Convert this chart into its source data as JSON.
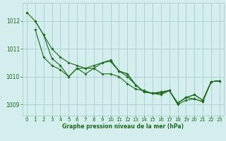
{
  "s1": [
    1012.3,
    1012.0,
    1011.5,
    1011.0,
    1010.7,
    1010.5,
    1010.4,
    1010.3,
    1010.4,
    1010.5,
    1010.6,
    1010.2,
    1010.1,
    1009.7,
    1009.45,
    1009.4,
    1009.45,
    1009.5,
    1009.05,
    1009.25,
    1009.35,
    1009.15,
    1009.82,
    1009.85
  ],
  "s2": [
    1012.3,
    null,
    null,
    null,
    null,
    null,
    null,
    null,
    null,
    null,
    1010.55,
    1010.2,
    1010.0,
    1009.7,
    1009.45,
    1009.4,
    1009.4,
    1009.5,
    1009.05,
    1009.25,
    1009.2,
    1009.1,
    1009.82,
    1009.85
  ],
  "s3": [
    null,
    1011.7,
    1010.7,
    1010.4,
    1010.25,
    1010.0,
    1010.3,
    1010.1,
    1010.3,
    1010.1,
    1010.1,
    1010.0,
    1009.75,
    1009.55,
    1009.5,
    1009.4,
    1009.35,
    1009.5,
    1009.0,
    1009.15,
    1009.2,
    1009.1,
    1009.82,
    1009.85
  ],
  "s4": [
    null,
    1012.0,
    1011.5,
    1010.65,
    1010.4,
    1010.0,
    1010.3,
    1010.3,
    1010.3,
    1010.5,
    1010.55,
    1010.2,
    1010.1,
    1009.7,
    1009.45,
    1009.4,
    1009.45,
    1009.5,
    1009.05,
    1009.25,
    1009.35,
    1009.15,
    1009.82,
    1009.85
  ],
  "hours": [
    0,
    1,
    2,
    3,
    4,
    5,
    6,
    7,
    8,
    9,
    10,
    11,
    12,
    13,
    14,
    15,
    16,
    17,
    18,
    19,
    20,
    21,
    22,
    23
  ],
  "ylim": [
    1008.6,
    1012.65
  ],
  "yticks": [
    1009,
    1010,
    1011,
    1012
  ],
  "xticks": [
    0,
    1,
    2,
    3,
    4,
    5,
    6,
    7,
    8,
    9,
    10,
    11,
    12,
    13,
    14,
    15,
    16,
    17,
    18,
    19,
    20,
    21,
    22,
    23
  ],
  "line_color": "#1a6b1a",
  "marker_size": 2.0,
  "bg_color": "#d4eded",
  "grid_color": "#9ec8c8",
  "xlabel": "Graphe pression niveau de la mer (hPa)",
  "xlabel_color": "#1a6b1a",
  "tick_color": "#1a6b1a"
}
